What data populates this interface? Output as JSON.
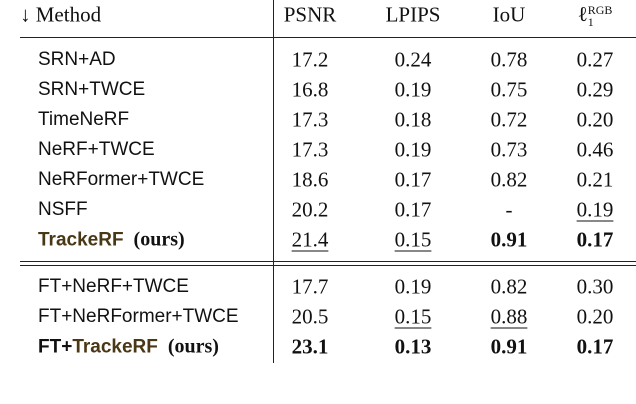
{
  "table": {
    "header": [
      "↓ Method",
      "PSNR",
      "LPIPS",
      "IoU",
      {
        "base": "ℓ",
        "sub": "1",
        "sup": "RGB"
      }
    ],
    "groups": [
      [
        {
          "method": [
            "SRN+AD"
          ],
          "values": [
            "17.2",
            "0.24",
            "0.78",
            "0.27"
          ]
        },
        {
          "method": [
            "SRN+TWCE"
          ],
          "values": [
            "16.8",
            "0.19",
            "0.75",
            "0.29"
          ]
        },
        {
          "method": [
            "TimeNeRF"
          ],
          "values": [
            "17.3",
            "0.18",
            "0.72",
            "0.20"
          ]
        },
        {
          "method": [
            "NeRF+TWCE"
          ],
          "values": [
            "17.3",
            "0.19",
            "0.73",
            "0.46"
          ]
        },
        {
          "method": [
            "NeRFormer+TWCE"
          ],
          "values": [
            "18.6",
            "0.17",
            "0.82",
            "0.21"
          ]
        },
        {
          "method": [
            "NSFF"
          ],
          "values": [
            "20.2",
            "0.17",
            "-",
            "0.19"
          ]
        },
        {
          "method": [
            "TrackeRF"
          ],
          "suffix": "(ours)",
          "values": [
            "21.4",
            "0.15",
            "0.91",
            "0.17"
          ]
        }
      ],
      [
        {
          "method": [
            "FT+NeRF+TWCE"
          ],
          "values": [
            "17.7",
            "0.19",
            "0.82",
            "0.30"
          ]
        },
        {
          "method": [
            "FT+NeRFormer+TWCE"
          ],
          "values": [
            "20.5",
            "0.15",
            "0.88",
            "0.20"
          ]
        },
        {
          "method": [
            "FT+",
            "TrackeRF"
          ],
          "suffix": "(ours)",
          "values": [
            "23.1",
            "0.13",
            "0.91",
            "0.17"
          ]
        }
      ]
    ]
  }
}
